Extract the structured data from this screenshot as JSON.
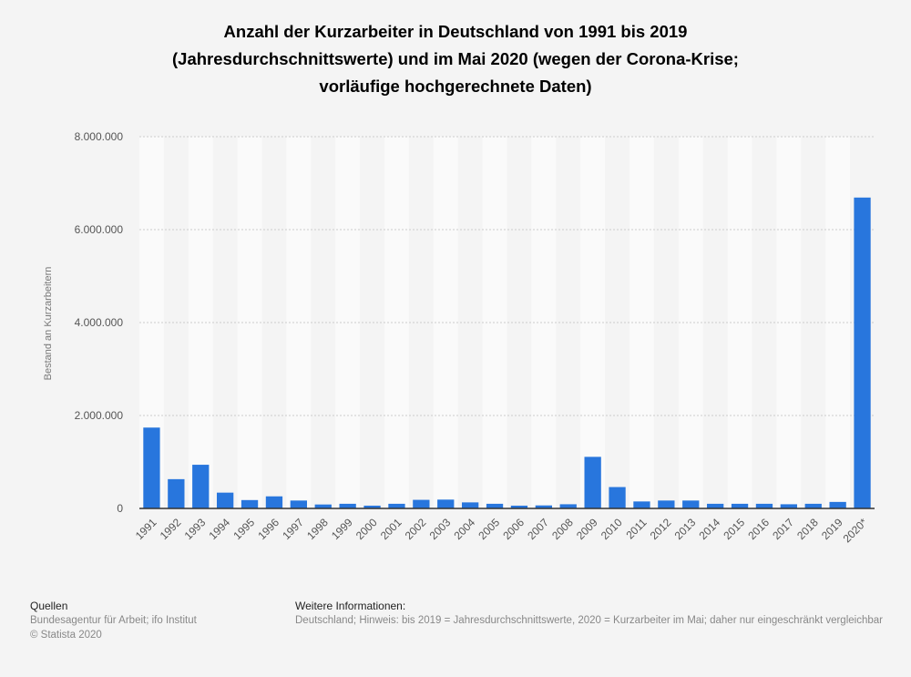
{
  "chart_data": {
    "type": "bar",
    "title": "Anzahl der Kurzarbeiter in Deutschland von 1991 bis 2019 (Jahresdurchschnittswerte) und im Mai 2020 (wegen der Corona-Krise; vorläufige hochgerechnete Daten)",
    "xlabel": "",
    "ylabel": "Bestand an Kurzarbeitern",
    "ylim": [
      0,
      8000000
    ],
    "yticks": [
      "0",
      "2.000.000",
      "4.000.000",
      "6.000.000",
      "8.000.000"
    ],
    "grid": true,
    "color": "#2876dd",
    "categories": [
      "1991",
      "1992",
      "1993",
      "1994",
      "1995",
      "1996",
      "1997",
      "1998",
      "1999",
      "2000",
      "2001",
      "2002",
      "2003",
      "2004",
      "2005",
      "2006",
      "2007",
      "2008",
      "2009",
      "2010",
      "2011",
      "2012",
      "2013",
      "2014",
      "2015",
      "2016",
      "2017",
      "2018",
      "2019",
      "2020*"
    ],
    "values": [
      1740000,
      630000,
      940000,
      340000,
      180000,
      260000,
      170000,
      85000,
      100000,
      60000,
      100000,
      185000,
      190000,
      130000,
      100000,
      60000,
      65000,
      90000,
      1110000,
      460000,
      150000,
      170000,
      170000,
      100000,
      100000,
      100000,
      90000,
      100000,
      140000,
      6690000
    ]
  },
  "footer": {
    "sources_heading": "Quellen",
    "sources": "Bundesagentur für Arbeit; ifo Institut",
    "copyright": "© Statista 2020",
    "info_heading": "Weitere Informationen:",
    "info": "Deutschland; Hinweis: bis 2019 = Jahresdurchschnittswerte, 2020 = Kurzarbeiter im Mai; daher nur eingeschränkt vergleichbar"
  }
}
